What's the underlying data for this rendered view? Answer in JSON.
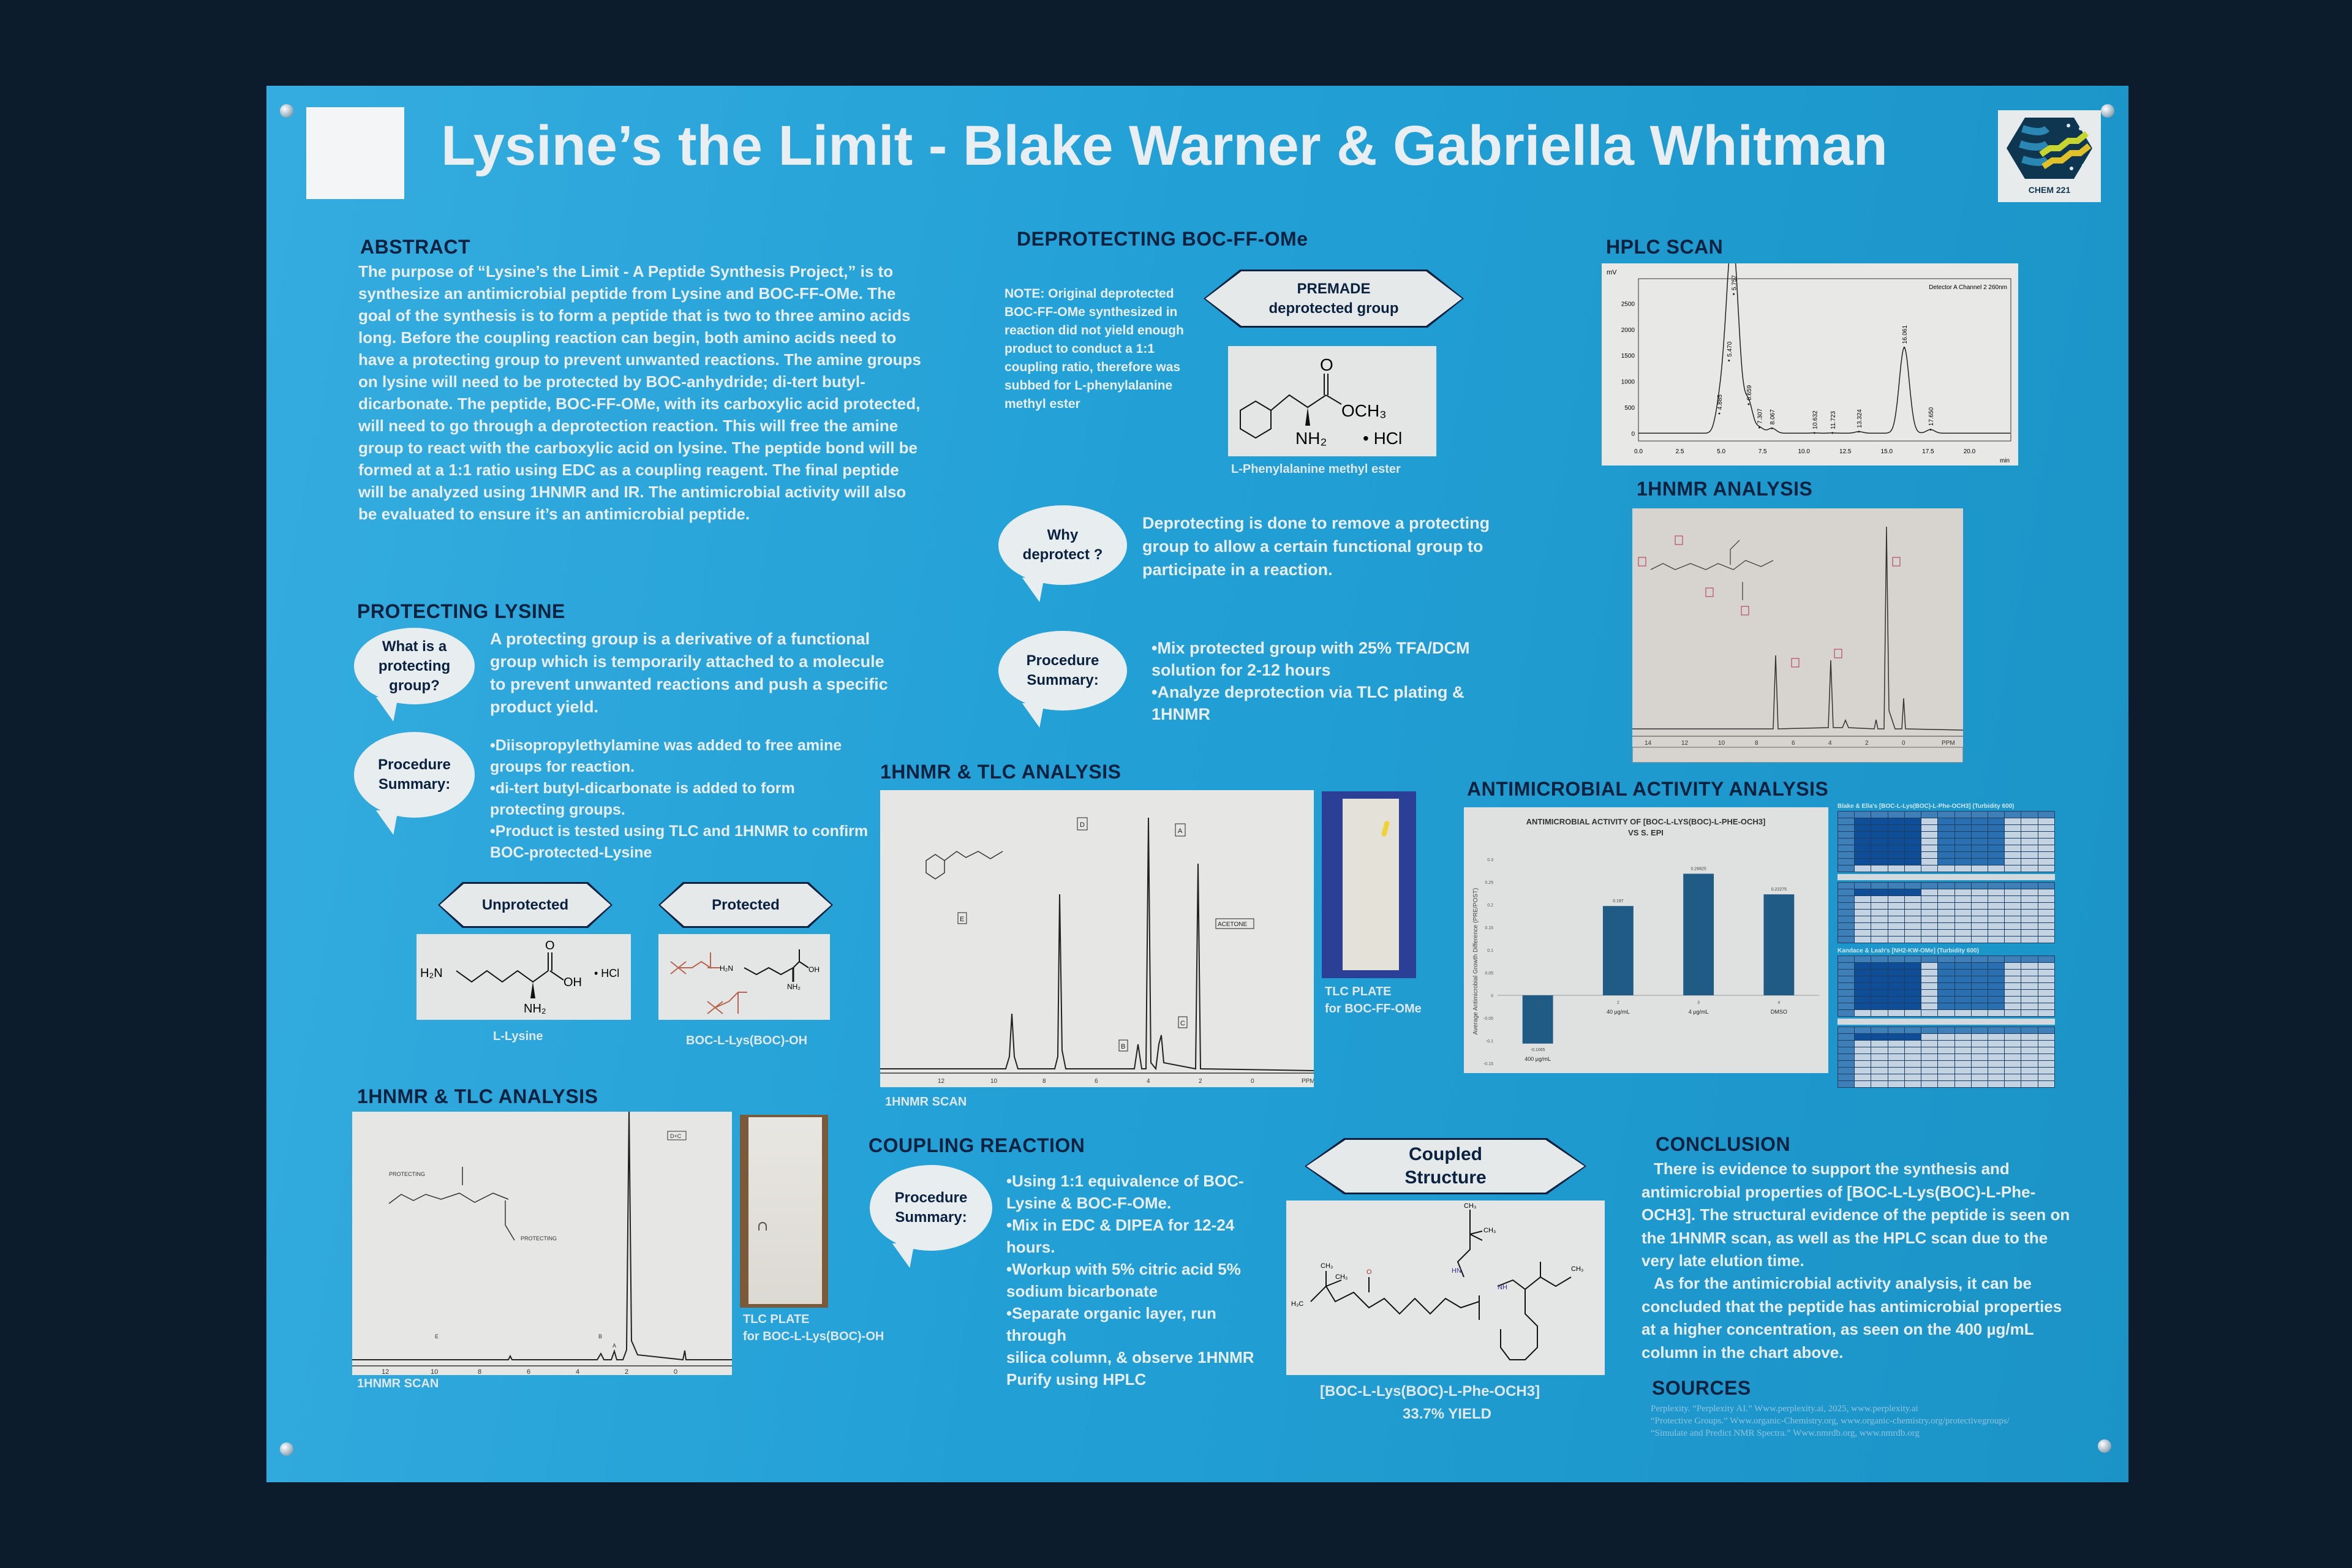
{
  "poster": {
    "title": "Lysine’s the Limit - Blake Warner & Gabriella Whitman",
    "logo_text": "CHEM 221",
    "colors": {
      "poster_blue": "#22a0d6",
      "heading_navy": "#0b2140",
      "bar_blue": "#1f5b85",
      "backdrop": "#0c1c2d"
    }
  },
  "abstract": {
    "heading": "ABSTRACT",
    "body": "The purpose of “Lysine’s the Limit - A Peptide Synthesis Project,” is to synthesize an antimicrobial peptide from Lysine and BOC-FF-OMe. The goal of the synthesis is to form a peptide that is two to three amino acids long. Before the coupling reaction can begin, both amino acids need to have a protecting group to prevent unwanted reactions. The amine groups on lysine will need to be protected by BOC-anhydride; di-tert butyl-dicarbonate. The peptide, BOC-FF-OMe, with its carboxylic acid protected, will need to go through a deprotection reaction. This will free the amine group to react with the carboxylic acid on lysine. The peptide bond will be formed at a 1:1 ratio using EDC as a coupling reagent. The final peptide will be analyzed using 1HNMR and IR. The antimicrobial activity will also be evaluated to ensure it’s an antimicrobial peptide."
  },
  "protecting": {
    "heading": "PROTECTING LYSINE",
    "q_bubble": "What is a protecting group?",
    "q_text": "A protecting group is a derivative of a functional group which is temporarily attached to a molecule to prevent unwanted reactions and push a specific product yield.",
    "proc_bubble": "Procedure Summary:",
    "proc_lines": [
      "•Diisopropylethylamine was added to free amine groups for reaction.",
      "•di-tert butyl-dicarbonate is added to form protecting groups.",
      "•Product is tested using TLC and 1HNMR to confirm BOC-protected-Lysine"
    ],
    "unprotected_label": "Unprotected",
    "protected_label": "Protected",
    "unprotected_caption": "L-Lysine",
    "protected_caption": "BOC-L-Lys(BOC)-OH",
    "struct_unprotected": {
      "h2n": "H₂N",
      "o": "O",
      "oh": "OH",
      "nh2": "NH₂",
      "hcl": "• HCl"
    },
    "struct_protected": {
      "h2n": "H₂N",
      "oh": "OH",
      "nh2": "NH₂"
    }
  },
  "nmr_left": {
    "heading": "1HNMR & TLC ANALYSIS",
    "scan_caption": "1HNMR SCAN",
    "tlc_caption": [
      "TLC PLATE",
      "for BOC-L-Lys(BOC)-OH"
    ],
    "ticks": [
      "12",
      "10",
      "8",
      "6",
      "4",
      "2",
      "0"
    ],
    "labels": [
      "D+C",
      "PROTECTING",
      "PROTECTING",
      "E",
      "B",
      "A"
    ]
  },
  "deprotecting": {
    "heading": "DEPROTECTING BOC-FF-OMe",
    "note": "NOTE: Original deprotected BOC-FF-OMe synthesized in reaction did not yield enough product to conduct a 1:1 coupling ratio, therefore was subbed for L-phenylalanine methyl ester",
    "premade_label": [
      "PREMADE",
      "deprotected group"
    ],
    "struct": {
      "o": "O",
      "och3": "OCH₃",
      "nh2": "NH₂",
      "hcl": "• HCl"
    },
    "struct_caption": "L-Phenylalanine methyl ester",
    "why_bubble": "Why deprotect ?",
    "why_text": "Deprotecting is done to remove a protecting group to allow a certain functional group to participate in a reaction.",
    "proc_bubble": "Procedure Summary:",
    "proc_lines": [
      "•Mix protected group with 25% TFA/DCM solution for 2-12 hours",
      "•Analyze deprotection via TLC plating & 1HNMR"
    ]
  },
  "nmr_mid": {
    "heading": "1HNMR & TLC ANALYSIS",
    "scan_caption": "1HNMR SCAN",
    "tlc_caption": [
      "TLC PLATE",
      "for BOC-FF-OMe"
    ],
    "ticks": [
      "12",
      "10",
      "8",
      "6",
      "4",
      "2",
      "0"
    ],
    "unit": "PPM",
    "labels": [
      "D",
      "A",
      "ACETONE",
      "B",
      "C",
      "E"
    ]
  },
  "hplc": {
    "heading": "HPLC SCAN"
  },
  "nmr_right": {
    "heading": "1HNMR ANALYSIS",
    "ticks": [
      "14",
      "12",
      "10",
      "8",
      "6",
      "4",
      "2",
      "0"
    ],
    "unit": "PPM"
  },
  "antimicrobial": {
    "heading": "ANTIMICROBIAL ACTIVITY ANALYSIS",
    "table1_title": "Blake & Ella's [BOC-L-Lys(BOC)-L-Phe-OCH3] (Turbidity 600)",
    "table2_title": "Kandace & Leah's [NH2-KW-OMe] (Turbidity 600)"
  },
  "coupling": {
    "heading": "COUPLING REACTION",
    "proc_bubble": "Procedure Summary:",
    "proc_lines": [
      "•Using 1:1 equivalence of BOC-Lysine & BOC-F-OMe.",
      "•Mix in EDC & DIPEA for 12-24 hours.",
      "•Workup with 5% citric acid 5% sodium bicarbonate",
      "•Separate organic layer, run through",
      "silica column, & observe 1HNMR",
      "Purify using HPLC"
    ],
    "coupled_label": [
      "Coupled",
      "Structure"
    ],
    "product_name": "[BOC-L-Lys(BOC)-L-Phe-OCH3]",
    "yield": "33.7% YIELD",
    "struct": {
      "ch3a": "CH₃",
      "ch3b": "CH₃",
      "ch3c": "CH₃",
      "ch3d": "CH₃",
      "ch3e": "CH₃",
      "h3c": "H₃C",
      "hn": "HN",
      "nh": "NH",
      "o": "O"
    }
  },
  "conclusion": {
    "heading": "CONCLUSION",
    "p1": "There is evidence to support the synthesis and antimicrobial properties of [BOC-L-Lys(BOC)-L-Phe-OCH3]. The structural evidence of the peptide is seen on the 1HNMR scan, as well as the HPLC scan due to the very late elution time.",
    "p2": "As for the antimicrobial activity analysis, it can be concluded that the peptide has antimicrobial properties at a higher concentration, as seen on the 400 µg/mL column in the chart above."
  },
  "sources": {
    "heading": "SOURCES",
    "refs": [
      "Perplexity. “Perplexity AI.” Www.perplexity.ai, 2025, www.perplexity.ai",
      "“Protective Groups.” Www.organic-Chemistry.org, www.organic-chemistry.org/protectivegroups/",
      "“Simulate and Predict NMR Spectra.” Www.nmrdb.org, www.nmrdb.org"
    ]
  },
  "chart_data": [
    {
      "type": "bar",
      "title": "ANTIMICROBIAL ACTIVITY OF [BOC-L-LYS(BOC)-L-PHE-OCH3] VS S. EPI",
      "ylabel": "Average Antimicrobial Growth Difference (PRE/POST)",
      "xlabel": "",
      "categories": [
        "400 µg/mL",
        "40 µg/mL",
        "4 µg/mL",
        "DMSO"
      ],
      "category_index": [
        "1",
        "2",
        "3",
        "4"
      ],
      "values": [
        -0.1065,
        0.197,
        0.26825,
        0.22275
      ],
      "data_labels": [
        "-0.1065",
        "0.197",
        "0.26825",
        "0.22275"
      ],
      "ylim": [
        -0.15,
        0.3
      ],
      "yticks": [
        "0.3",
        "0.25",
        "0.2",
        "0.15",
        "0.1",
        "0.05",
        "0",
        "-0.05",
        "-0.1",
        "-0.15"
      ],
      "grid": false,
      "bar_color": "#1f5b85"
    },
    {
      "type": "line",
      "title": "",
      "legend": "Detector A Channel 2 260nm",
      "xlabel": "min",
      "ylabel": "mV",
      "xlim": [
        0,
        22.5
      ],
      "ylim": [
        -150,
        2800
      ],
      "xticks": [
        "0.0",
        "2.5",
        "5.0",
        "7.5",
        "10.0",
        "12.5",
        "15.0",
        "17.5",
        "20.0"
      ],
      "yticks": [
        "2500",
        "2000",
        "1500",
        "1000",
        "500",
        "0"
      ],
      "peaks": [
        {
          "rt": "4.885",
          "x": 4.885,
          "y": 380
        },
        {
          "rt": "5.470",
          "x": 5.47,
          "y": 1400
        },
        {
          "rt": "5.757",
          "x": 5.757,
          "y": 2680
        },
        {
          "rt": "6.659",
          "x": 6.659,
          "y": 560
        },
        {
          "rt": "7.307",
          "x": 7.307,
          "y": 110
        },
        {
          "rt": "8.067",
          "x": 8.067,
          "y": 95
        },
        {
          "rt": "10.632",
          "x": 10.632,
          "y": 5
        },
        {
          "rt": "11.723",
          "x": 11.723,
          "y": 5
        },
        {
          "rt": "13.324",
          "x": 13.324,
          "y": 30
        },
        {
          "rt": "16.061",
          "x": 16.061,
          "y": 1650
        },
        {
          "rt": "17.650",
          "x": 17.65,
          "y": 70
        }
      ]
    }
  ]
}
